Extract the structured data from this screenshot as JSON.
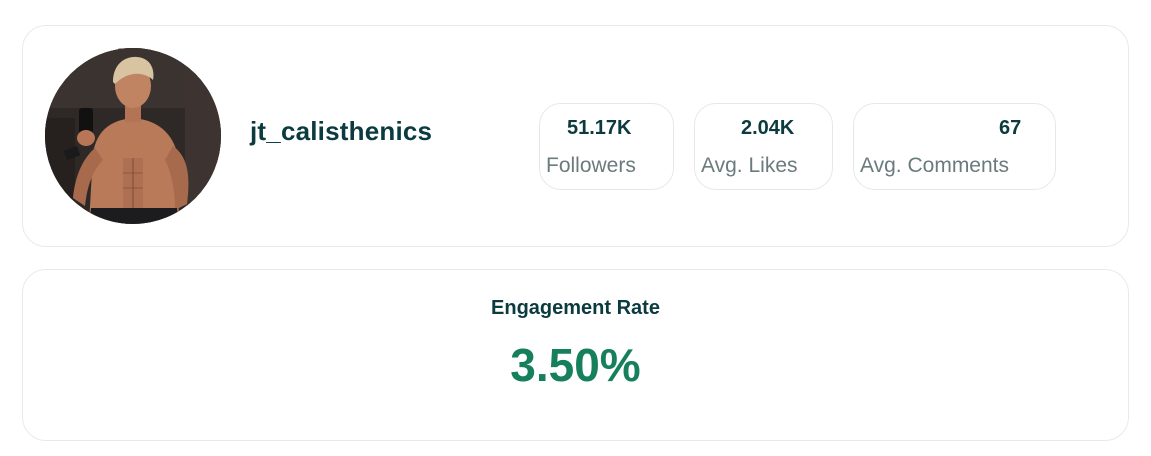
{
  "profile": {
    "username": "jt_calisthenics",
    "avatar_alt": "profile photo"
  },
  "stats": [
    {
      "value": "51.17K",
      "label": "Followers"
    },
    {
      "value": "2.04K",
      "label": "Avg. Likes"
    },
    {
      "value": "67",
      "label": "Avg. Comments"
    }
  ],
  "engagement": {
    "title": "Engagement Rate",
    "value": "3.50%"
  },
  "colors": {
    "primary_text": "#0b3a3f",
    "muted_text": "#6b7b7d",
    "accent_green": "#167f5c",
    "border": "#e8eaea"
  }
}
